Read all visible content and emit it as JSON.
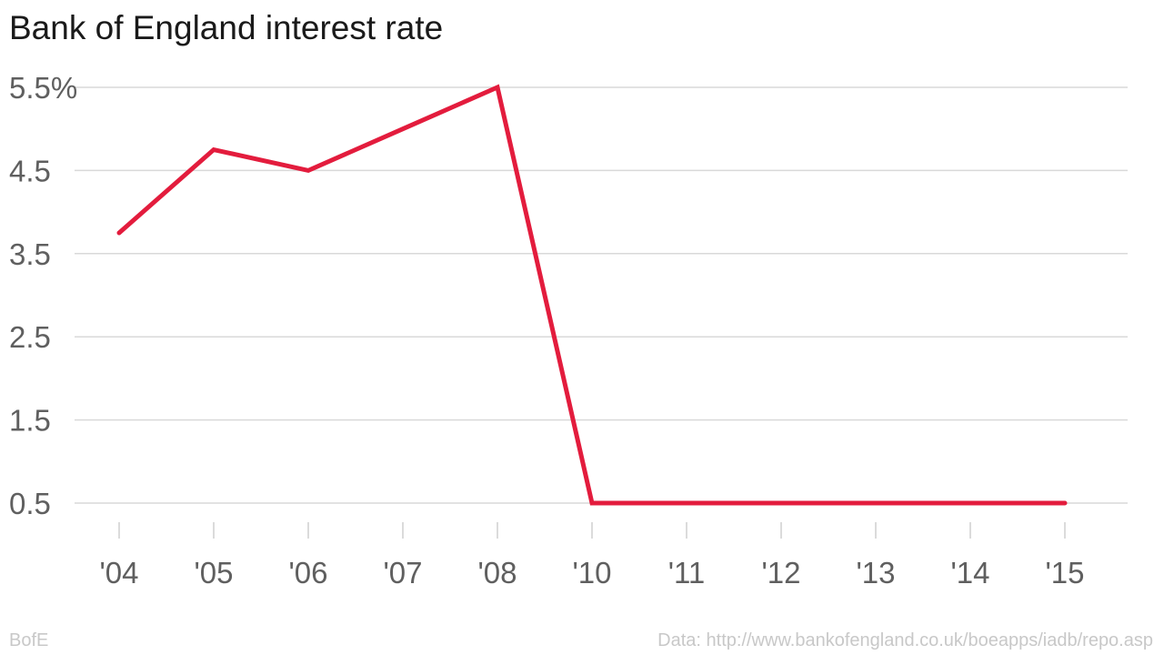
{
  "chart_data": {
    "type": "line",
    "title": "Bank of England interest rate",
    "categories": [
      "'04",
      "'05",
      "'06",
      "'07",
      "'08",
      "'10",
      "'11",
      "'12",
      "'13",
      "'14",
      "'15"
    ],
    "series": [
      {
        "values": [
          3.75,
          4.75,
          4.5,
          5.0,
          5.5,
          0.5,
          0.5,
          0.5,
          0.5,
          0.5,
          0.5
        ],
        "color": "#e31c3d"
      }
    ],
    "y_ticks": [
      {
        "value": 0.5,
        "label": "0.5"
      },
      {
        "value": 1.5,
        "label": "1.5"
      },
      {
        "value": 2.5,
        "label": "2.5"
      },
      {
        "value": 3.5,
        "label": "3.5"
      },
      {
        "value": 4.5,
        "label": "4.5"
      },
      {
        "value": 5.5,
        "label": "5.5%"
      }
    ],
    "ylim": [
      0.5,
      5.5
    ],
    "grid": true,
    "gridline_color": "#d9d9d9",
    "legend": false
  },
  "footer": {
    "source_left": "BofE",
    "source_right": "Data: http://www.bankofengland.co.uk/boeapps/iadb/repo.asp"
  }
}
